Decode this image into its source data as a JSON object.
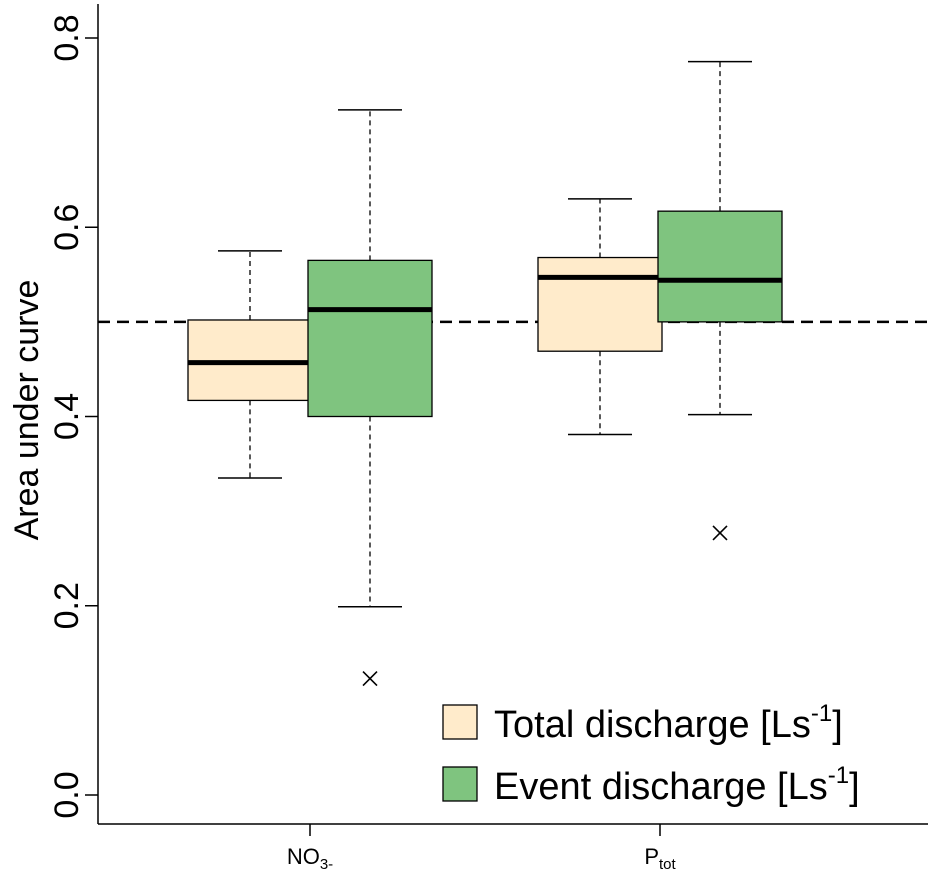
{
  "chart_data": {
    "type": "boxplot",
    "ylabel": "Area under curve",
    "ylim": [
      0.0,
      0.8
    ],
    "yticks": [
      "0.0",
      "0.2",
      "0.4",
      "0.6",
      "0.8"
    ],
    "categories": [
      {
        "main": "NO",
        "sub": "3-"
      },
      {
        "main": "P",
        "sub": "tot"
      }
    ],
    "reference_line": 0.5,
    "legend_position": "bottom-right",
    "series": [
      {
        "name": "Total discharge [Ls",
        "name_sup": "-1",
        "name_suffix": "]",
        "color": "#FFEBCB",
        "boxes": [
          {
            "whisker_low": 0.335,
            "q1": 0.417,
            "median": 0.457,
            "q3": 0.502,
            "whisker_high": 0.575,
            "outliers": []
          },
          {
            "whisker_low": 0.381,
            "q1": 0.469,
            "median": 0.547,
            "q3": 0.568,
            "whisker_high": 0.63,
            "outliers": []
          }
        ]
      },
      {
        "name": "Event discharge [Ls",
        "name_sup": "-1",
        "name_suffix": "]",
        "color": "#7FC47F",
        "boxes": [
          {
            "whisker_low": 0.199,
            "q1": 0.4,
            "median": 0.513,
            "q3": 0.565,
            "whisker_high": 0.724,
            "outliers": [
              0.123
            ]
          },
          {
            "whisker_low": 0.402,
            "q1": 0.5,
            "median": 0.544,
            "q3": 0.617,
            "whisker_high": 0.775,
            "outliers": [
              0.277
            ]
          }
        ]
      }
    ]
  }
}
